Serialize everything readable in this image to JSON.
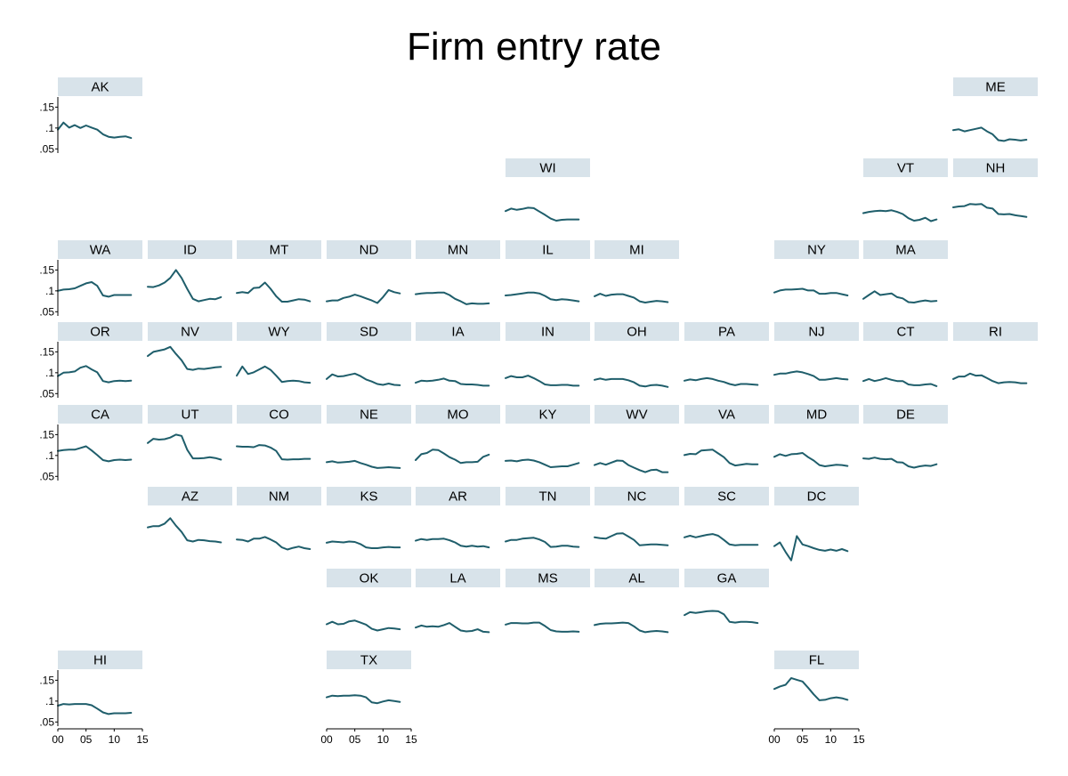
{
  "chart_data": {
    "type": "line",
    "title": "Firm entry rate",
    "xlabel": "",
    "ylabel": "",
    "xlim": [
      0,
      15
    ],
    "ylim": [
      0.04,
      0.17
    ],
    "x_ticks": [
      "00",
      "05",
      "10",
      "15"
    ],
    "y_ticks": [
      ".05",
      ".1",
      ".15"
    ],
    "grid": false,
    "legend": "none",
    "line_color": "#1f5e6b",
    "strip_color": "#d8e3ea",
    "x": [
      0,
      1,
      2,
      3,
      4,
      5,
      6,
      7,
      8,
      9,
      10,
      11,
      12,
      13
    ],
    "series": [
      {
        "state": "AK",
        "values": [
          0.096,
          0.113,
          0.101,
          0.107,
          0.1,
          0.106,
          0.101,
          0.096,
          0.085,
          0.079,
          0.077,
          0.079,
          0.08,
          0.076
        ]
      },
      {
        "state": "ME",
        "values": [
          0.095,
          0.097,
          0.092,
          0.095,
          0.098,
          0.101,
          0.092,
          0.085,
          0.071,
          0.069,
          0.073,
          0.072,
          0.07,
          0.072
        ]
      },
      {
        "state": "WI",
        "values": [
          0.095,
          0.101,
          0.098,
          0.1,
          0.103,
          0.102,
          0.094,
          0.086,
          0.077,
          0.072,
          0.074,
          0.075,
          0.075,
          0.075
        ]
      },
      {
        "state": "VT",
        "values": [
          0.09,
          0.093,
          0.095,
          0.096,
          0.095,
          0.097,
          0.093,
          0.088,
          0.078,
          0.072,
          0.074,
          0.079,
          0.071,
          0.075
        ]
      },
      {
        "state": "NH",
        "values": [
          0.104,
          0.106,
          0.107,
          0.112,
          0.111,
          0.112,
          0.103,
          0.101,
          0.088,
          0.087,
          0.088,
          0.085,
          0.083,
          0.081
        ]
      },
      {
        "state": "WA",
        "values": [
          0.1,
          0.103,
          0.104,
          0.106,
          0.112,
          0.118,
          0.121,
          0.112,
          0.089,
          0.086,
          0.09,
          0.09,
          0.09,
          0.09
        ]
      },
      {
        "state": "ID",
        "values": [
          0.11,
          0.109,
          0.113,
          0.12,
          0.131,
          0.15,
          0.131,
          0.105,
          0.081,
          0.075,
          0.078,
          0.081,
          0.08,
          0.085
        ]
      },
      {
        "state": "MT",
        "values": [
          0.095,
          0.097,
          0.095,
          0.107,
          0.108,
          0.12,
          0.105,
          0.087,
          0.074,
          0.074,
          0.077,
          0.08,
          0.079,
          0.075
        ]
      },
      {
        "state": "ND",
        "values": [
          0.075,
          0.077,
          0.077,
          0.083,
          0.086,
          0.091,
          0.087,
          0.082,
          0.077,
          0.071,
          0.085,
          0.102,
          0.097,
          0.094
        ]
      },
      {
        "state": "MN",
        "values": [
          0.092,
          0.094,
          0.095,
          0.095,
          0.096,
          0.096,
          0.09,
          0.081,
          0.075,
          0.068,
          0.07,
          0.069,
          0.069,
          0.07
        ]
      },
      {
        "state": "IL",
        "values": [
          0.089,
          0.09,
          0.092,
          0.094,
          0.096,
          0.096,
          0.094,
          0.088,
          0.08,
          0.078,
          0.08,
          0.079,
          0.077,
          0.075
        ]
      },
      {
        "state": "MI",
        "values": [
          0.087,
          0.093,
          0.088,
          0.091,
          0.092,
          0.092,
          0.088,
          0.084,
          0.075,
          0.072,
          0.074,
          0.076,
          0.075,
          0.073
        ]
      },
      {
        "state": "NY",
        "values": [
          0.096,
          0.101,
          0.103,
          0.103,
          0.104,
          0.105,
          0.101,
          0.101,
          0.093,
          0.093,
          0.095,
          0.095,
          0.092,
          0.089
        ]
      },
      {
        "state": "MA",
        "values": [
          0.081,
          0.09,
          0.099,
          0.09,
          0.092,
          0.094,
          0.085,
          0.082,
          0.073,
          0.072,
          0.075,
          0.077,
          0.075,
          0.076
        ]
      },
      {
        "state": "OR",
        "values": [
          0.092,
          0.1,
          0.101,
          0.103,
          0.112,
          0.116,
          0.108,
          0.101,
          0.08,
          0.077,
          0.08,
          0.081,
          0.08,
          0.081
        ]
      },
      {
        "state": "NV",
        "values": [
          0.14,
          0.15,
          0.153,
          0.156,
          0.162,
          0.145,
          0.13,
          0.109,
          0.107,
          0.11,
          0.109,
          0.111,
          0.113,
          0.114
        ]
      },
      {
        "state": "WY",
        "values": [
          0.093,
          0.115,
          0.097,
          0.101,
          0.108,
          0.115,
          0.107,
          0.093,
          0.078,
          0.08,
          0.081,
          0.08,
          0.077,
          0.076
        ]
      },
      {
        "state": "SD",
        "values": [
          0.085,
          0.096,
          0.091,
          0.092,
          0.095,
          0.098,
          0.092,
          0.084,
          0.079,
          0.073,
          0.071,
          0.074,
          0.071,
          0.07
        ]
      },
      {
        "state": "IA",
        "values": [
          0.076,
          0.081,
          0.08,
          0.081,
          0.083,
          0.086,
          0.081,
          0.08,
          0.073,
          0.072,
          0.072,
          0.071,
          0.069,
          0.069
        ]
      },
      {
        "state": "IN",
        "values": [
          0.087,
          0.092,
          0.089,
          0.089,
          0.093,
          0.087,
          0.08,
          0.072,
          0.07,
          0.07,
          0.071,
          0.071,
          0.069,
          0.069
        ]
      },
      {
        "state": "OH",
        "values": [
          0.083,
          0.086,
          0.083,
          0.085,
          0.085,
          0.085,
          0.082,
          0.077,
          0.069,
          0.067,
          0.07,
          0.071,
          0.069,
          0.066
        ]
      },
      {
        "state": "PA",
        "values": [
          0.081,
          0.084,
          0.082,
          0.085,
          0.087,
          0.085,
          0.081,
          0.078,
          0.073,
          0.07,
          0.073,
          0.073,
          0.072,
          0.071
        ]
      },
      {
        "state": "NJ",
        "values": [
          0.095,
          0.098,
          0.098,
          0.101,
          0.103,
          0.101,
          0.097,
          0.092,
          0.083,
          0.083,
          0.085,
          0.087,
          0.085,
          0.084
        ]
      },
      {
        "state": "CT",
        "values": [
          0.08,
          0.085,
          0.08,
          0.083,
          0.087,
          0.083,
          0.08,
          0.08,
          0.072,
          0.07,
          0.07,
          0.072,
          0.073,
          0.068
        ]
      },
      {
        "state": "RI",
        "values": [
          0.085,
          0.091,
          0.091,
          0.098,
          0.093,
          0.094,
          0.087,
          0.08,
          0.075,
          0.077,
          0.078,
          0.077,
          0.075,
          0.075
        ]
      },
      {
        "state": "CA",
        "values": [
          0.111,
          0.113,
          0.114,
          0.114,
          0.118,
          0.122,
          0.112,
          0.101,
          0.089,
          0.086,
          0.089,
          0.09,
          0.089,
          0.09
        ]
      },
      {
        "state": "UT",
        "values": [
          0.13,
          0.14,
          0.138,
          0.139,
          0.143,
          0.15,
          0.147,
          0.114,
          0.093,
          0.093,
          0.094,
          0.096,
          0.094,
          0.09
        ]
      },
      {
        "state": "CO",
        "values": [
          0.122,
          0.121,
          0.121,
          0.12,
          0.125,
          0.124,
          0.119,
          0.111,
          0.091,
          0.09,
          0.091,
          0.091,
          0.092,
          0.092
        ]
      },
      {
        "state": "NE",
        "values": [
          0.084,
          0.086,
          0.083,
          0.084,
          0.085,
          0.087,
          0.082,
          0.078,
          0.073,
          0.07,
          0.071,
          0.072,
          0.071,
          0.07
        ]
      },
      {
        "state": "MO",
        "values": [
          0.089,
          0.103,
          0.106,
          0.114,
          0.113,
          0.105,
          0.096,
          0.09,
          0.082,
          0.084,
          0.084,
          0.085,
          0.097,
          0.102
        ]
      },
      {
        "state": "KY",
        "values": [
          0.087,
          0.088,
          0.086,
          0.089,
          0.09,
          0.088,
          0.084,
          0.078,
          0.072,
          0.073,
          0.074,
          0.074,
          0.078,
          0.082
        ]
      },
      {
        "state": "WV",
        "values": [
          0.077,
          0.082,
          0.078,
          0.083,
          0.088,
          0.087,
          0.077,
          0.071,
          0.065,
          0.06,
          0.065,
          0.066,
          0.06,
          0.06
        ]
      },
      {
        "state": "VA",
        "values": [
          0.101,
          0.104,
          0.103,
          0.112,
          0.113,
          0.114,
          0.105,
          0.096,
          0.082,
          0.076,
          0.078,
          0.08,
          0.079,
          0.079
        ]
      },
      {
        "state": "MD",
        "values": [
          0.097,
          0.103,
          0.099,
          0.103,
          0.104,
          0.106,
          0.096,
          0.088,
          0.077,
          0.074,
          0.076,
          0.078,
          0.077,
          0.075
        ]
      },
      {
        "state": "DE",
        "values": [
          0.093,
          0.092,
          0.095,
          0.092,
          0.091,
          0.092,
          0.084,
          0.083,
          0.074,
          0.071,
          0.074,
          0.076,
          0.075,
          0.079
        ]
      },
      {
        "state": "AZ",
        "values": [
          0.124,
          0.127,
          0.127,
          0.133,
          0.146,
          0.128,
          0.113,
          0.093,
          0.09,
          0.094,
          0.093,
          0.091,
          0.09,
          0.088
        ]
      },
      {
        "state": "NM",
        "values": [
          0.095,
          0.094,
          0.09,
          0.097,
          0.097,
          0.101,
          0.095,
          0.088,
          0.076,
          0.071,
          0.075,
          0.078,
          0.074,
          0.072
        ]
      },
      {
        "state": "KS",
        "values": [
          0.087,
          0.09,
          0.089,
          0.088,
          0.09,
          0.089,
          0.084,
          0.076,
          0.074,
          0.074,
          0.076,
          0.077,
          0.076,
          0.076
        ]
      },
      {
        "state": "AR",
        "values": [
          0.092,
          0.096,
          0.094,
          0.096,
          0.096,
          0.097,
          0.093,
          0.088,
          0.08,
          0.078,
          0.08,
          0.078,
          0.079,
          0.076
        ]
      },
      {
        "state": "TN",
        "values": [
          0.09,
          0.094,
          0.094,
          0.097,
          0.098,
          0.099,
          0.095,
          0.089,
          0.077,
          0.078,
          0.08,
          0.08,
          0.078,
          0.077
        ]
      },
      {
        "state": "NC",
        "values": [
          0.1,
          0.098,
          0.097,
          0.103,
          0.109,
          0.11,
          0.102,
          0.094,
          0.081,
          0.082,
          0.083,
          0.083,
          0.082,
          0.081
        ]
      },
      {
        "state": "SC",
        "values": [
          0.1,
          0.104,
          0.1,
          0.103,
          0.106,
          0.108,
          0.104,
          0.094,
          0.083,
          0.081,
          0.082,
          0.082,
          0.082,
          0.082
        ]
      },
      {
        "state": "DC",
        "values": [
          0.079,
          0.088,
          0.065,
          0.045,
          0.103,
          0.083,
          0.079,
          0.074,
          0.07,
          0.068,
          0.071,
          0.068,
          0.072,
          0.067
        ]
      },
      {
        "state": "OK",
        "values": [
          0.088,
          0.094,
          0.088,
          0.089,
          0.095,
          0.097,
          0.092,
          0.087,
          0.077,
          0.073,
          0.076,
          0.079,
          0.078,
          0.076
        ]
      },
      {
        "state": "LA",
        "values": [
          0.08,
          0.085,
          0.082,
          0.083,
          0.082,
          0.086,
          0.091,
          0.082,
          0.073,
          0.071,
          0.072,
          0.076,
          0.07,
          0.069
        ]
      },
      {
        "state": "MS",
        "values": [
          0.087,
          0.091,
          0.091,
          0.09,
          0.09,
          0.092,
          0.092,
          0.084,
          0.074,
          0.071,
          0.07,
          0.07,
          0.071,
          0.07
        ]
      },
      {
        "state": "AL",
        "values": [
          0.086,
          0.089,
          0.09,
          0.09,
          0.091,
          0.092,
          0.091,
          0.083,
          0.073,
          0.069,
          0.071,
          0.072,
          0.071,
          0.069
        ]
      },
      {
        "state": "GA",
        "values": [
          0.11,
          0.117,
          0.115,
          0.117,
          0.119,
          0.12,
          0.119,
          0.112,
          0.094,
          0.092,
          0.094,
          0.094,
          0.093,
          0.091
        ]
      },
      {
        "state": "HI",
        "values": [
          0.089,
          0.093,
          0.092,
          0.093,
          0.093,
          0.093,
          0.09,
          0.082,
          0.073,
          0.069,
          0.071,
          0.071,
          0.071,
          0.072
        ]
      },
      {
        "state": "TX",
        "values": [
          0.109,
          0.113,
          0.112,
          0.113,
          0.113,
          0.114,
          0.113,
          0.109,
          0.097,
          0.095,
          0.099,
          0.102,
          0.1,
          0.098
        ]
      },
      {
        "state": "FL",
        "values": [
          0.129,
          0.135,
          0.139,
          0.155,
          0.151,
          0.147,
          0.132,
          0.116,
          0.102,
          0.103,
          0.107,
          0.109,
          0.107,
          0.103
        ]
      }
    ]
  }
}
